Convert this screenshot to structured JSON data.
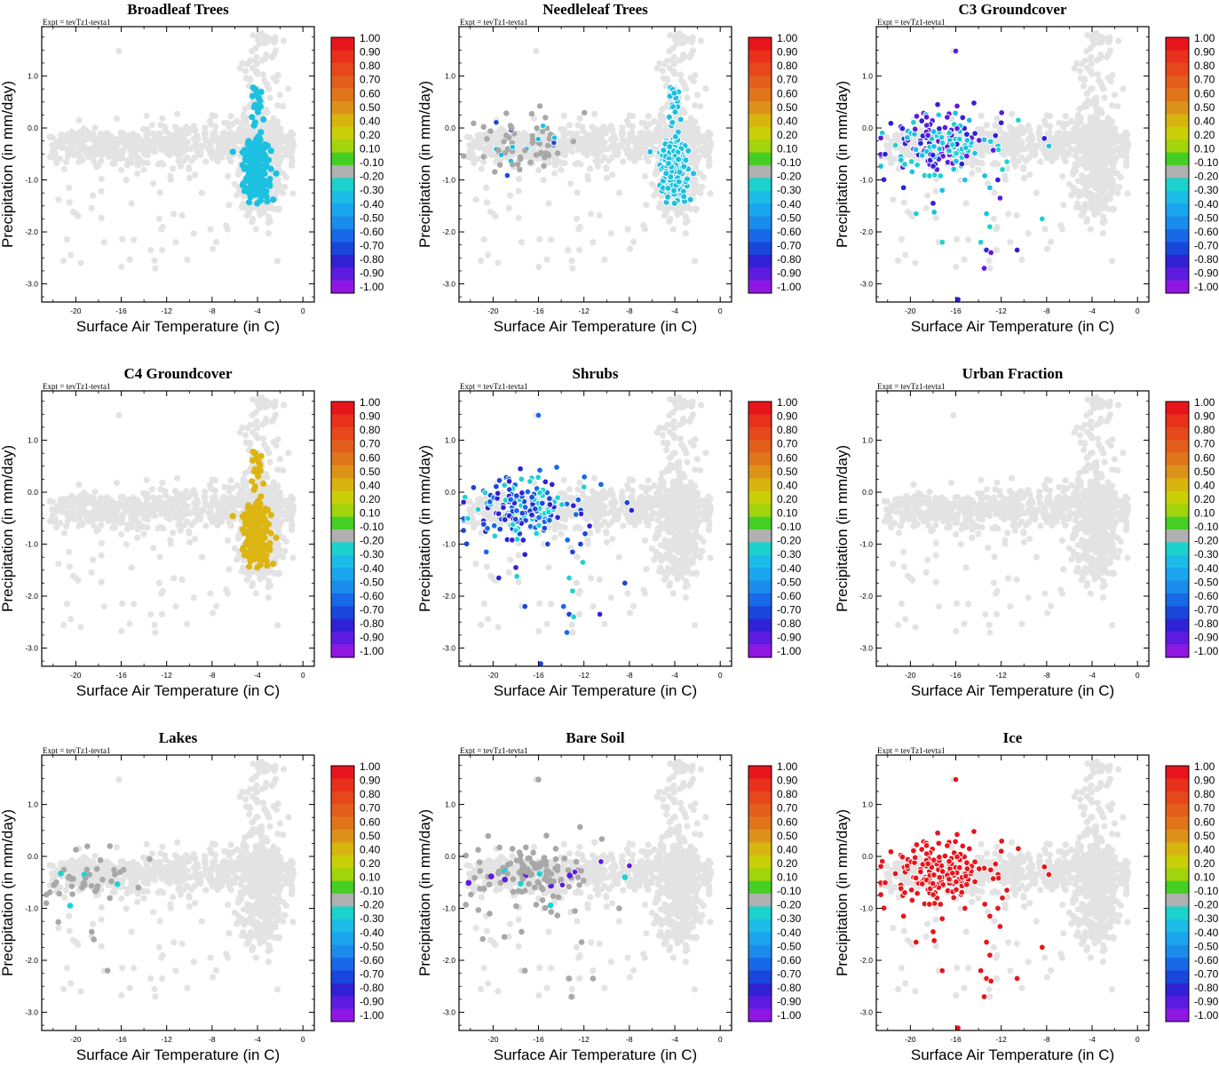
{
  "chart_data": {
    "type": "scatter",
    "layout": "3x3 grid",
    "shared": {
      "expt_label": "Expt = tevTz1-tevta1",
      "xlabel": "Surface Air Temperature (in C)",
      "ylabel": "Precipitation (in mm/day)",
      "xlim": [
        -23,
        1
      ],
      "ylim": [
        -3.35,
        1.95
      ],
      "xticks": [
        -20,
        -16,
        -12,
        -8,
        -4,
        0
      ],
      "yticks": [
        1.0,
        0.0,
        -1.0,
        -2.0,
        -3.0
      ],
      "yticklabels": [
        "1.0",
        "0.0",
        "-1.0",
        "-2.0",
        "-3.0"
      ],
      "colorbar": {
        "labels": [
          "1.00",
          "0.90",
          "0.80",
          "0.70",
          "0.60",
          "0.50",
          "0.40",
          "0.20",
          "0.10",
          "-0.10",
          "-0.20",
          "-0.30",
          "-0.40",
          "-0.50",
          "-0.60",
          "-0.70",
          "-0.80",
          "-0.90",
          "-1.00"
        ],
        "colors": [
          "#e8141b",
          "#e8301b",
          "#e6471b",
          "#e45e1b",
          "#e0751a",
          "#dc9219",
          "#d8b40f",
          "#cbcf08",
          "#a2d40c",
          "#45cf24",
          "#b0b0b0",
          "#1cd2cc",
          "#1bbce6",
          "#1aa5ef",
          "#1a8ceb",
          "#1769e8",
          "#1946db",
          "#3022d4",
          "#5d1be0",
          "#8f16e3"
        ]
      },
      "background_color": "#e3e3e3",
      "neutral_color": "#a8a8a8"
    },
    "panels": [
      {
        "title": "Broadleaf Trees",
        "mode": "cluster",
        "color": "#1cc0e0"
      },
      {
        "title": "Needleleaf Trees",
        "mode": "mixed",
        "cluster_color": "#1cc0e0"
      },
      {
        "title": "C3 Groundcover",
        "mode": "arctic",
        "palette": [
          "#1bd2d0",
          "#1cc0e0",
          "#3022d4",
          "#5d1be0"
        ]
      },
      {
        "title": "C4 Groundcover",
        "mode": "cluster",
        "color": "#dcb512"
      },
      {
        "title": "Shrubs",
        "mode": "arctic",
        "palette": [
          "#1b46db",
          "#1769e8",
          "#3022d4",
          "#1bd2d0"
        ]
      },
      {
        "title": "Urban Fraction",
        "mode": "none"
      },
      {
        "title": "Lakes",
        "mode": "lakes"
      },
      {
        "title": "Bare Soil",
        "mode": "baresoil"
      },
      {
        "title": "Ice",
        "mode": "arctic",
        "palette": [
          "#e8141b"
        ]
      }
    ]
  }
}
